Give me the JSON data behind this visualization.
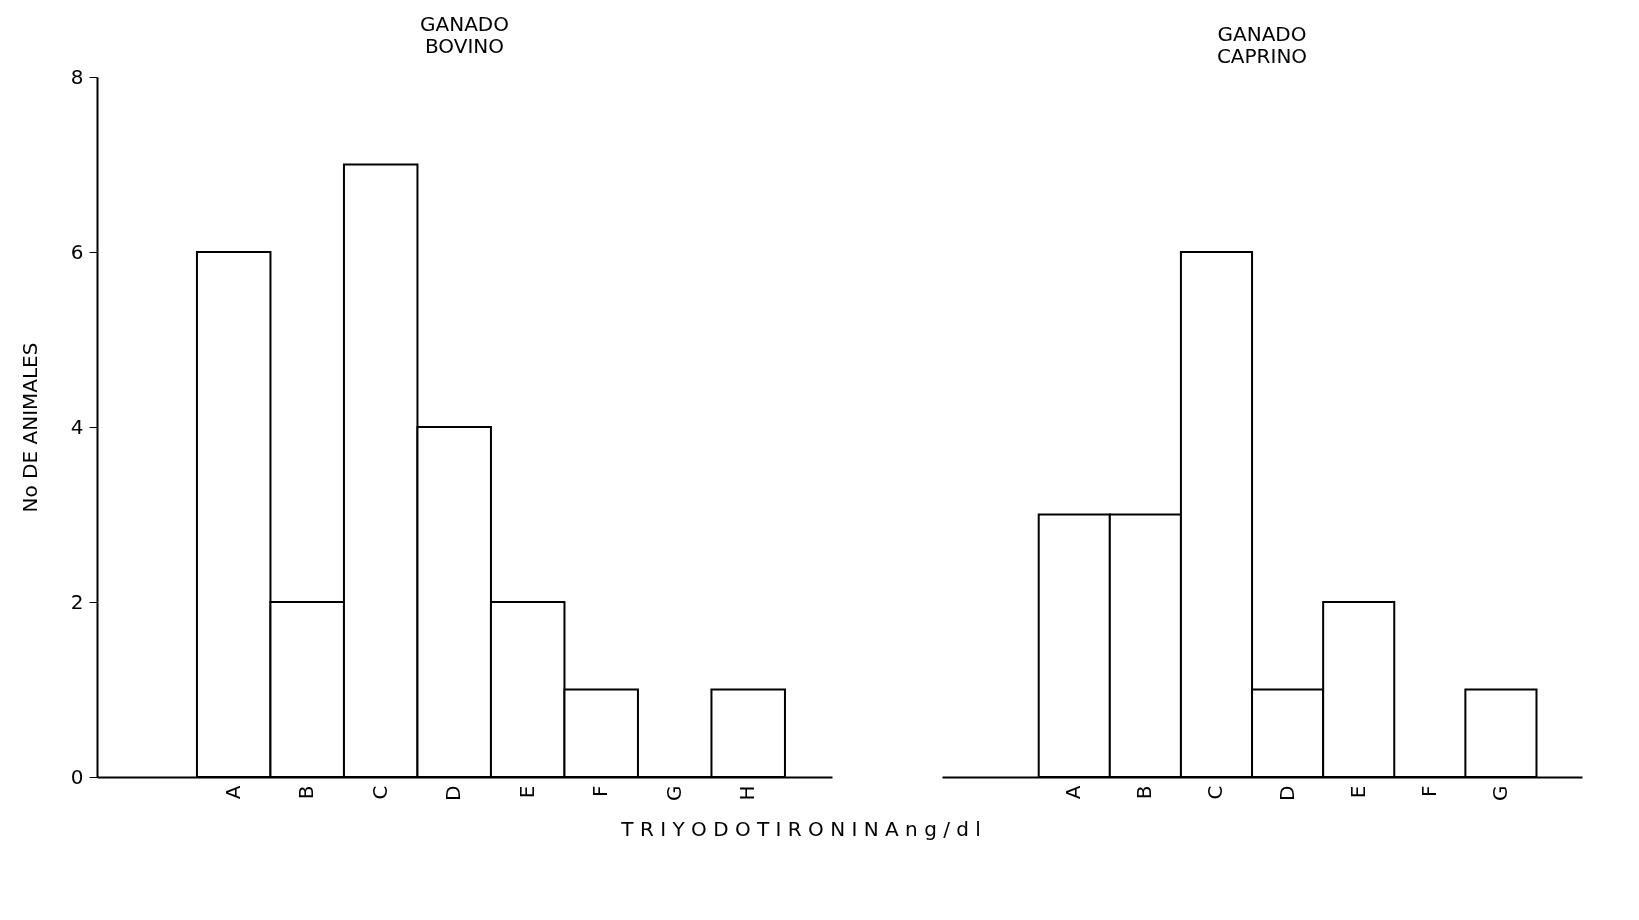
{
  "chart_data": [
    {
      "type": "bar",
      "title": "GANADO\nBOVINO",
      "ylabel": "No DE ANIMALES",
      "xlabel": "T R I Y O D O T I R O N I N A        n g  /  d l",
      "categories": [
        "A",
        "B",
        "C",
        "D",
        "E",
        "F",
        "G",
        "H"
      ],
      "values": [
        6,
        2,
        7,
        4,
        2,
        1,
        0,
        1
      ],
      "color": "#ffffff",
      "ylim": [
        0,
        8
      ],
      "yticks": [
        0,
        2,
        4,
        6,
        8
      ],
      "grid": false
    },
    {
      "type": "bar",
      "title": "GANADO\nCAPRINO",
      "categories": [
        "A",
        "B",
        "C",
        "D",
        "E",
        "F",
        "G"
      ],
      "values": [
        3,
        3,
        6,
        1,
        2,
        0,
        1
      ],
      "color": "#ffffff",
      "ylim": [
        0,
        8
      ],
      "grid": false,
      "tick_labels": "x"
    }
  ]
}
